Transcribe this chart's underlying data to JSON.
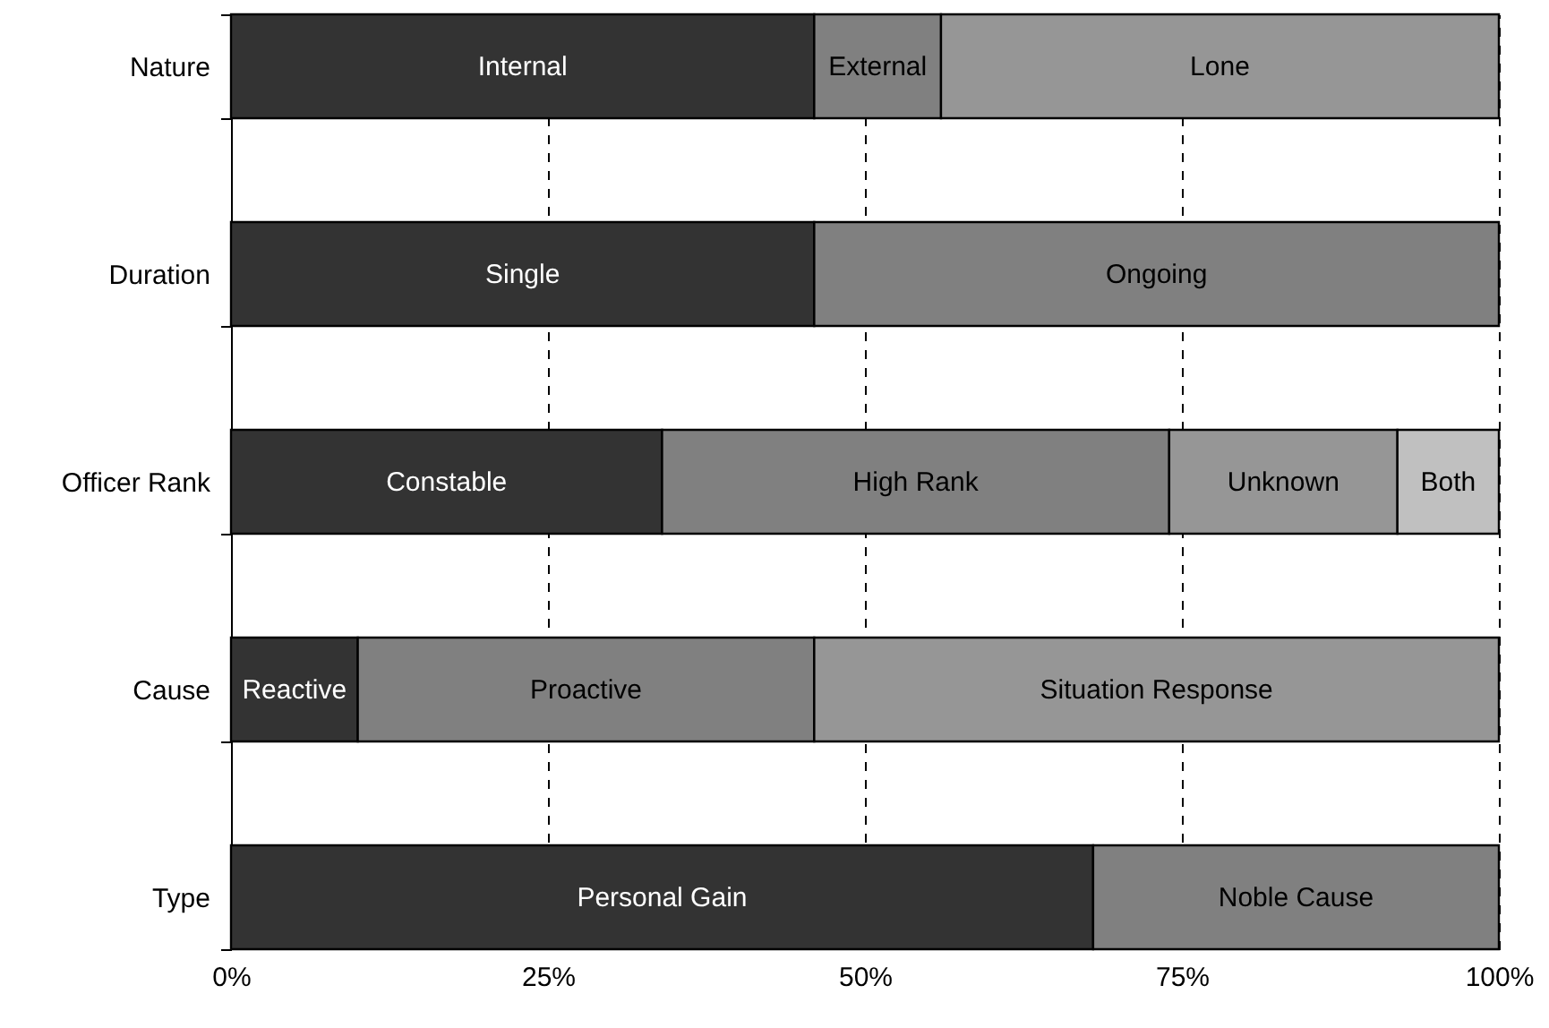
{
  "chart_data": {
    "type": "bar",
    "orientation": "horizontal",
    "stacked": true,
    "categories": [
      "Nature",
      "Duration",
      "Officer Rank",
      "Cause",
      "Type"
    ],
    "series": [
      {
        "color": "#333333",
        "values": [
          46,
          46,
          34,
          10,
          68
        ],
        "value_labels": [
          "Internal",
          "Single",
          "Constable",
          "Reactive",
          "Personal Gain"
        ]
      },
      {
        "color": "#808080",
        "values": [
          10,
          54,
          40,
          36,
          32
        ],
        "value_labels": [
          "External",
          "Ongoing",
          "High Rank",
          "Proactive",
          "Noble Cause"
        ]
      },
      {
        "color": "#969696",
        "values": [
          44,
          null,
          18,
          54,
          null
        ],
        "value_labels": [
          "Lone",
          null,
          "Unknown",
          "Situation Response",
          null
        ]
      },
      {
        "color": "#c0c0c0",
        "values": [
          null,
          null,
          8,
          null,
          null
        ],
        "value_labels": [
          null,
          null,
          "Both",
          null,
          null
        ]
      }
    ],
    "xlim": [
      0,
      100
    ],
    "xticks": [
      {
        "value": 0,
        "label": "0%"
      },
      {
        "value": 25,
        "label": "25%"
      },
      {
        "value": 50,
        "label": "50%"
      },
      {
        "value": 75,
        "label": "75%"
      },
      {
        "value": 100,
        "label": "100%"
      }
    ],
    "grid": "x"
  }
}
